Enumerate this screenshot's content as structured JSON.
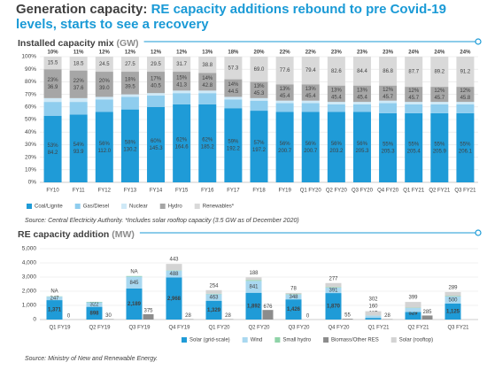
{
  "header": {
    "lead": "Generation capacity:",
    "title": "RE capacity additions rebound to pre Covid-19 levels, starts to see a recovery"
  },
  "chart_data": [
    {
      "type": "bar",
      "stacked": true,
      "title": "Installed capacity mix",
      "unit": "(GW)",
      "categories": [
        "FY10",
        "FY11",
        "FY12",
        "FY13",
        "FY14",
        "FY15",
        "FY16",
        "FY17",
        "FY18",
        "FY19",
        "Q1 FY20",
        "Q2 FY20",
        "Q3 FY20",
        "Q4 FY20",
        "Q1 FY21",
        "Q2 FY21",
        "Q3 FY21"
      ],
      "series": [
        {
          "name": "Coal/Lignite",
          "color": "#1f9bd7",
          "values": [
            53,
            54,
            56,
            58,
            60,
            62,
            62,
            59,
            57,
            56,
            56,
            56,
            56,
            55,
            55,
            55,
            55
          ],
          "value_labels": [
            "53%",
            "54%",
            "56%",
            "58%",
            "60%",
            "62%",
            "62%",
            "59%",
            "57%",
            "56%",
            "56%",
            "56%",
            "56%",
            "55%",
            "55%",
            "55%",
            "55%"
          ],
          "gw_labels": [
            "84.2",
            "93.9",
            "112.0",
            "130.2",
            "145.3",
            "164.6",
            "185.2",
            "192.2",
            "197.2",
            "200.7",
            "200.7",
            "203.2",
            "205.3",
            "205.3",
            "205.4",
            "205.9",
            "206.1"
          ]
        },
        {
          "name": "Gas/Diesel",
          "color": "#8fcdee",
          "values": [
            11,
            10,
            10,
            10,
            9,
            9,
            9,
            7,
            8,
            7,
            7,
            6,
            6,
            8,
            7,
            7,
            7
          ]
        },
        {
          "name": "Nuclear",
          "color": "#cfe9f7",
          "values": [
            3,
            3,
            2,
            2,
            2,
            2,
            2,
            2,
            2,
            2,
            2,
            2,
            2,
            2,
            2,
            2,
            2
          ]
        },
        {
          "name": "Hydro",
          "color": "#a6a6a6",
          "values": [
            23,
            22,
            20,
            18,
            17,
            15,
            14,
            14,
            13,
            13,
            13,
            13,
            13,
            12,
            12,
            12,
            12
          ],
          "value_labels": [
            "23%",
            "22%",
            "20%",
            "18%",
            "17%",
            "15%",
            "14%",
            "14%",
            "13%",
            "13%",
            "13%",
            "13%",
            "13%",
            "12%",
            "12%",
            "12%",
            "12%"
          ],
          "gw_labels": [
            "36.9",
            "37.6",
            "39.0",
            "39.5",
            "40.5",
            "41.3",
            "42.8",
            "44.5",
            "45.3",
            "45.4",
            "45.4",
            "45.4",
            "45.4",
            "45.7",
            "45.7",
            "45.7",
            "45.8"
          ]
        },
        {
          "name": "Renewables*",
          "color": "#d9d9d9",
          "values": [
            10,
            11,
            12,
            12,
            12,
            12,
            13,
            18,
            20,
            22,
            22,
            23,
            23,
            23,
            24,
            24,
            24
          ],
          "value_labels": [
            "10%",
            "11%",
            "12%",
            "12%",
            "12%",
            "12%",
            "13%",
            "18%",
            "20%",
            "22%",
            "22%",
            "23%",
            "23%",
            "23%",
            "24%",
            "24%",
            "24%"
          ],
          "gw_labels": [
            "15.5",
            "18.5",
            "24.5",
            "27.5",
            "29.5",
            "31.7",
            "38.8",
            "57.3",
            "69.0",
            "77.6",
            "79.4",
            "82.6",
            "84.4",
            "86.8",
            "87.7",
            "89.2",
            "91.2"
          ]
        }
      ],
      "ylim": [
        0,
        100
      ],
      "yticks": [
        {
          "value": 0,
          "label": "0%"
        },
        {
          "value": 10,
          "label": "10%"
        },
        {
          "value": 20,
          "label": "20%"
        },
        {
          "value": 30,
          "label": "30%"
        },
        {
          "value": 40,
          "label": "40%"
        },
        {
          "value": 50,
          "label": "50%"
        },
        {
          "value": 60,
          "label": "60%"
        },
        {
          "value": 70,
          "label": "70%"
        },
        {
          "value": 80,
          "label": "80%"
        },
        {
          "value": 90,
          "label": "90%"
        },
        {
          "value": 100,
          "label": "100%"
        }
      ],
      "grid": true,
      "source": "Source: Central Electricity Authority. *Includes solar rooftop capacity (3.5 GW as of December 2020)"
    },
    {
      "type": "bar",
      "stacked": true,
      "title": "RE capacity addition",
      "unit": "(MW)",
      "categories": [
        "Q1 FY19",
        "Q2 FY19",
        "Q3 FY19",
        "Q4 FY19",
        "Q1 FY20",
        "Q2 FY20",
        "Q3 FY20",
        "Q4 FY20",
        "Q1 FY21",
        "Q2 FY21",
        "Q3 FY21"
      ],
      "series": [
        {
          "name": "Solar (grid-scale)",
          "color": "#1f9bd7",
          "values": [
            1371,
            898,
            2189,
            2968,
            1329,
            1892,
            1426,
            1870,
            117,
            529,
            1125
          ],
          "value_labels": [
            "1,371",
            "898",
            "2,189",
            "2,968",
            "1,329",
            "1,892",
            "1,426",
            "1,870",
            "117",
            "529",
            "1,125"
          ]
        },
        {
          "name": "Wind",
          "color": "#a9d8f0",
          "values": [
            247,
            322,
            845,
            488,
            463,
            841,
            348,
            391,
            160,
            295,
            500
          ],
          "value_labels": [
            "247",
            "322",
            "845",
            "488",
            "463",
            "841",
            "348",
            "391",
            "160",
            "295",
            "500"
          ]
        },
        {
          "name": "Small hydro",
          "color": "#8fd3a8",
          "values": [
            20,
            30,
            40,
            30,
            30,
            60,
            30,
            40,
            10,
            20,
            30
          ]
        },
        {
          "name": "Biomass/Other RES",
          "color": "#8c8c8c",
          "placement": "beside",
          "values": [
            0,
            30,
            375,
            28,
            28,
            676,
            0,
            55,
            28,
            285,
            null
          ]
        },
        {
          "name": "Solar (rooftop)",
          "color": "#d3d3d3",
          "values": [
            null,
            null,
            null,
            443,
            254,
            188,
            78,
            277,
            302,
            399,
            289
          ],
          "value_labels": [
            "NA",
            null,
            "NA",
            "443",
            "254",
            "188",
            "78",
            "277",
            "302",
            "399",
            "289"
          ]
        }
      ],
      "ylim": [
        0,
        5000
      ],
      "yticks": [
        0,
        {
          "value": 1000,
          "label": "1,000"
        },
        {
          "value": 2000,
          "label": "2,000"
        },
        {
          "value": 3000,
          "label": "3,000"
        },
        {
          "value": 4000,
          "label": "4,000"
        },
        {
          "value": 5000,
          "label": "5,000"
        }
      ],
      "grid": true,
      "source": "Source: Ministry of New and Renewable Energy."
    }
  ]
}
